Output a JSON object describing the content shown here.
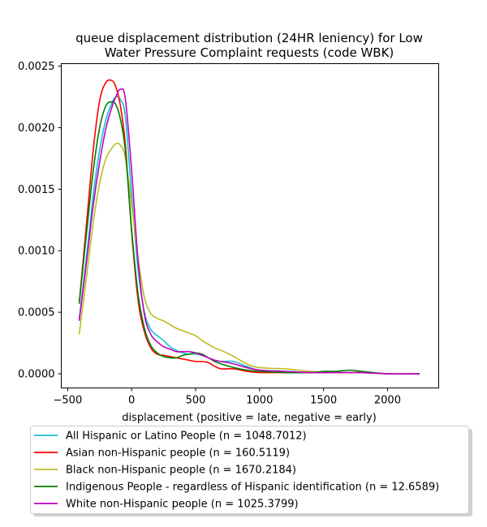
{
  "chart_data": {
    "type": "line",
    "title_lines": [
      "queue displacement distribution (24HR leniency) for Low",
      "Water Pressure Complaint  requests (code WBK)"
    ],
    "xlabel": "displacement (positive = late, negative = early)",
    "ylabel": "",
    "xlim": [
      -550,
      2400
    ],
    "ylim": [
      -0.000115,
      0.00252
    ],
    "xticks": [
      -500,
      0,
      500,
      1000,
      1500,
      2000
    ],
    "xtick_labels": [
      "−500",
      "0",
      "500",
      "1000",
      "1500",
      "2000"
    ],
    "yticks": [
      0.0,
      0.0005,
      0.001,
      0.0015,
      0.002,
      0.0025
    ],
    "ytick_labels": [
      "0.0000",
      "0.0005",
      "0.0010",
      "0.0015",
      "0.0020",
      "0.0025"
    ],
    "grid": false,
    "legend_position": "below plot",
    "series": [
      {
        "name": "All Hispanic or Latino People (n = 1048.7012)",
        "color": "#17becf",
        "x": [
          -410,
          -350,
          -300,
          -250,
          -200,
          -150,
          -120,
          -90,
          -50,
          0,
          50,
          100,
          150,
          200,
          250,
          300,
          350,
          400,
          450,
          500,
          550,
          600,
          650,
          700,
          800,
          900,
          1000,
          1200,
          1400,
          1600,
          1800,
          2000,
          2250
        ],
        "y": [
          0.00044,
          0.00098,
          0.00145,
          0.00182,
          0.00207,
          0.00221,
          0.00225,
          0.00223,
          0.0021,
          0.00145,
          0.00085,
          0.0005,
          0.00036,
          0.00031,
          0.00027,
          0.00022,
          0.00019,
          0.00017,
          0.00016,
          0.00016,
          0.00015,
          0.00013,
          0.00011,
          0.0001,
          0.0001,
          6e-05,
          3e-05,
          2e-05,
          1e-05,
          1e-05,
          1e-05,
          0.0,
          0.0
        ]
      },
      {
        "name": "Asian non-Hispanic people (n = 160.5119)",
        "color": "#ff0000",
        "x": [
          -410,
          -350,
          -300,
          -250,
          -200,
          -150,
          -120,
          -90,
          -50,
          0,
          50,
          100,
          150,
          200,
          250,
          300,
          350,
          400,
          450,
          500,
          550,
          600,
          650,
          700,
          800,
          900,
          1000,
          1200,
          1400,
          1600,
          1800,
          2000,
          2250
        ],
        "y": [
          0.00057,
          0.00125,
          0.00182,
          0.00222,
          0.00237,
          0.00238,
          0.00232,
          0.00219,
          0.00187,
          0.00115,
          0.0006,
          0.00034,
          0.00021,
          0.00016,
          0.00015,
          0.00014,
          0.00013,
          0.00012,
          0.00011,
          0.0001,
          0.0001,
          9e-05,
          6e-05,
          4e-05,
          4e-05,
          2e-05,
          1e-05,
          1e-05,
          1e-05,
          1e-05,
          1e-05,
          0.0,
          0.0
        ]
      },
      {
        "name": "Black non-Hispanic people (n = 1670.2184)",
        "color": "#bcbd22",
        "x": [
          -410,
          -350,
          -300,
          -250,
          -200,
          -150,
          -120,
          -90,
          -50,
          0,
          50,
          100,
          150,
          200,
          250,
          300,
          350,
          400,
          450,
          500,
          550,
          600,
          650,
          700,
          800,
          900,
          1000,
          1200,
          1400,
          1600,
          1800,
          2000,
          2250
        ],
        "y": [
          0.00032,
          0.00081,
          0.00123,
          0.00155,
          0.00175,
          0.00184,
          0.00187,
          0.00186,
          0.00176,
          0.00137,
          0.00094,
          0.00062,
          0.00049,
          0.00045,
          0.00043,
          0.0004,
          0.00037,
          0.00035,
          0.00033,
          0.00031,
          0.00027,
          0.00024,
          0.00021,
          0.00019,
          0.00014,
          8e-05,
          5e-05,
          4e-05,
          2e-05,
          1e-05,
          1e-05,
          0.0,
          0.0
        ]
      },
      {
        "name": "Indigenous People - regardless of Hispanic identification (n = 12.6589)",
        "color": "#008000",
        "x": [
          -410,
          -350,
          -300,
          -250,
          -200,
          -150,
          -120,
          -90,
          -50,
          0,
          50,
          100,
          150,
          200,
          250,
          300,
          350,
          400,
          450,
          500,
          550,
          600,
          650,
          700,
          800,
          900,
          1000,
          1200,
          1400,
          1500,
          1600,
          1700,
          1800,
          2000,
          2250
        ],
        "y": [
          0.00057,
          0.00117,
          0.00165,
          0.002,
          0.00218,
          0.00221,
          0.00218,
          0.00208,
          0.00182,
          0.00117,
          0.00065,
          0.00037,
          0.00023,
          0.00017,
          0.00014,
          0.00013,
          0.00013,
          0.00015,
          0.00016,
          0.00017,
          0.00016,
          0.00013,
          0.0001,
          8e-05,
          5e-05,
          3e-05,
          2e-05,
          1e-05,
          1e-05,
          2e-05,
          2e-05,
          3e-05,
          2e-05,
          0.0,
          0.0
        ]
      },
      {
        "name": "White non-Hispanic people (n = 1025.3799)",
        "color": "#bf00bf",
        "x": [
          -410,
          -350,
          -300,
          -250,
          -200,
          -150,
          -120,
          -90,
          -50,
          0,
          50,
          100,
          150,
          200,
          250,
          300,
          350,
          400,
          450,
          500,
          550,
          600,
          650,
          700,
          800,
          900,
          1000,
          1200,
          1400,
          1600,
          1800,
          2000,
          2250
        ],
        "y": [
          0.00043,
          0.00093,
          0.00137,
          0.00172,
          0.002,
          0.00218,
          0.00226,
          0.00231,
          0.00224,
          0.00165,
          0.00092,
          0.00048,
          0.00032,
          0.00026,
          0.00022,
          0.0002,
          0.00018,
          0.00018,
          0.00018,
          0.00017,
          0.00015,
          0.00013,
          0.00011,
          0.0001,
          8e-05,
          5e-05,
          3e-05,
          2e-05,
          1e-05,
          1e-05,
          1e-05,
          0.0,
          0.0
        ]
      }
    ]
  }
}
